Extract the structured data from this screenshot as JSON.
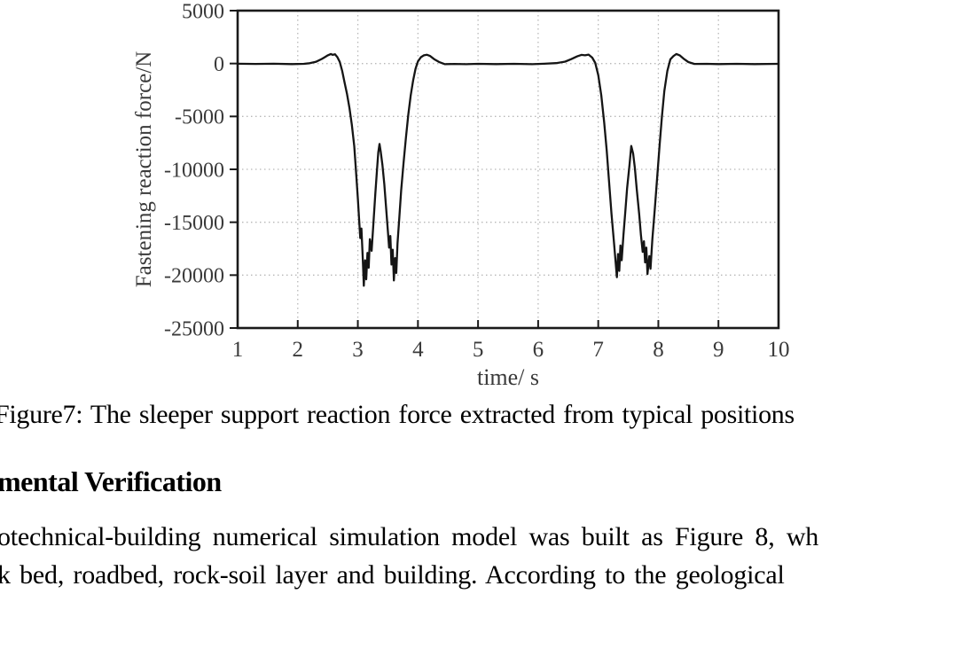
{
  "document": {
    "caption": "Figure7: The sleeper support reaction force extracted from typical positions",
    "heading": "mental Verification",
    "body_lines": [
      "otechnical-building numerical simulation model was built as Figure 8, wh",
      "k bed, roadbed, rock-soil layer and building. According to the geological"
    ]
  },
  "chart_data": {
    "type": "line",
    "title": "",
    "xlabel": "time/ s",
    "ylabel": "Fastening reaction force/N",
    "xlim": [
      1,
      10
    ],
    "ylim": [
      -25000,
      5000
    ],
    "xticks": [
      1,
      2,
      3,
      4,
      5,
      6,
      7,
      8,
      9,
      10
    ],
    "yticks": [
      5000,
      0,
      -5000,
      -10000,
      -15000,
      -20000,
      -25000
    ],
    "grid": "dotted",
    "legend": "none",
    "line_color": "#151515",
    "grid_color": "#b8b8b8",
    "frame_color": "#1a1a1a",
    "label_color": "#3a3a3a",
    "series": [
      {
        "name": "Fastening reaction force",
        "points": [
          [
            1.0,
            -20
          ],
          [
            1.3,
            -40
          ],
          [
            1.6,
            -20
          ],
          [
            1.9,
            -50
          ],
          [
            2.1,
            -30
          ],
          [
            2.2,
            30
          ],
          [
            2.3,
            160
          ],
          [
            2.4,
            430
          ],
          [
            2.45,
            600
          ],
          [
            2.5,
            780
          ],
          [
            2.55,
            900
          ],
          [
            2.58,
            820
          ],
          [
            2.62,
            880
          ],
          [
            2.66,
            600
          ],
          [
            2.7,
            150
          ],
          [
            2.74,
            -700
          ],
          [
            2.78,
            -1800
          ],
          [
            2.82,
            -2900
          ],
          [
            2.86,
            -4200
          ],
          [
            2.9,
            -5800
          ],
          [
            2.94,
            -7800
          ],
          [
            2.97,
            -10200
          ],
          [
            3.0,
            -12800
          ],
          [
            3.02,
            -14600
          ],
          [
            3.04,
            -16500
          ],
          [
            3.06,
            -15600
          ],
          [
            3.08,
            -18200
          ],
          [
            3.1,
            -21000
          ],
          [
            3.12,
            -18600
          ],
          [
            3.14,
            -20400
          ],
          [
            3.16,
            -17900
          ],
          [
            3.18,
            -19300
          ],
          [
            3.2,
            -16600
          ],
          [
            3.23,
            -17700
          ],
          [
            3.26,
            -15000
          ],
          [
            3.29,
            -12400
          ],
          [
            3.32,
            -10000
          ],
          [
            3.34,
            -8400
          ],
          [
            3.36,
            -7600
          ],
          [
            3.38,
            -8300
          ],
          [
            3.41,
            -9600
          ],
          [
            3.44,
            -11400
          ],
          [
            3.47,
            -13600
          ],
          [
            3.5,
            -15800
          ],
          [
            3.52,
            -17400
          ],
          [
            3.54,
            -16300
          ],
          [
            3.56,
            -19000
          ],
          [
            3.58,
            -17600
          ],
          [
            3.6,
            -20500
          ],
          [
            3.62,
            -18400
          ],
          [
            3.64,
            -19800
          ],
          [
            3.66,
            -17000
          ],
          [
            3.69,
            -14600
          ],
          [
            3.72,
            -12000
          ],
          [
            3.76,
            -9400
          ],
          [
            3.8,
            -7000
          ],
          [
            3.84,
            -4800
          ],
          [
            3.88,
            -3000
          ],
          [
            3.92,
            -1600
          ],
          [
            3.96,
            -500
          ],
          [
            4.0,
            200
          ],
          [
            4.05,
            600
          ],
          [
            4.1,
            780
          ],
          [
            4.15,
            830
          ],
          [
            4.2,
            720
          ],
          [
            4.27,
            420
          ],
          [
            4.35,
            150
          ],
          [
            4.45,
            -60
          ],
          [
            4.6,
            -40
          ],
          [
            4.8,
            -60
          ],
          [
            5.0,
            -30
          ],
          [
            5.3,
            -50
          ],
          [
            5.6,
            -30
          ],
          [
            5.9,
            -60
          ],
          [
            6.1,
            -20
          ],
          [
            6.3,
            40
          ],
          [
            6.45,
            180
          ],
          [
            6.55,
            420
          ],
          [
            6.65,
            680
          ],
          [
            6.72,
            820
          ],
          [
            6.78,
            780
          ],
          [
            6.84,
            840
          ],
          [
            6.9,
            560
          ],
          [
            6.95,
            60
          ],
          [
            7.0,
            -1100
          ],
          [
            7.05,
            -3000
          ],
          [
            7.1,
            -5600
          ],
          [
            7.14,
            -8200
          ],
          [
            7.18,
            -11200
          ],
          [
            7.22,
            -14200
          ],
          [
            7.26,
            -16800
          ],
          [
            7.29,
            -18800
          ],
          [
            7.31,
            -20200
          ],
          [
            7.33,
            -18000
          ],
          [
            7.35,
            -19600
          ],
          [
            7.37,
            -17200
          ],
          [
            7.39,
            -18600
          ],
          [
            7.42,
            -16200
          ],
          [
            7.45,
            -14000
          ],
          [
            7.48,
            -11800
          ],
          [
            7.52,
            -9600
          ],
          [
            7.55,
            -7800
          ],
          [
            7.58,
            -8500
          ],
          [
            7.61,
            -9900
          ],
          [
            7.64,
            -11800
          ],
          [
            7.68,
            -14200
          ],
          [
            7.71,
            -16200
          ],
          [
            7.74,
            -17800
          ],
          [
            7.76,
            -16800
          ],
          [
            7.78,
            -18800
          ],
          [
            7.8,
            -17400
          ],
          [
            7.82,
            -19900
          ],
          [
            7.85,
            -18200
          ],
          [
            7.87,
            -19400
          ],
          [
            7.9,
            -16600
          ],
          [
            7.94,
            -13800
          ],
          [
            7.98,
            -10800
          ],
          [
            8.02,
            -7800
          ],
          [
            8.06,
            -5000
          ],
          [
            8.1,
            -2600
          ],
          [
            8.15,
            -700
          ],
          [
            8.2,
            400
          ],
          [
            8.25,
            700
          ],
          [
            8.3,
            900
          ],
          [
            8.36,
            760
          ],
          [
            8.43,
            420
          ],
          [
            8.5,
            140
          ],
          [
            8.6,
            -40
          ],
          [
            8.8,
            -30
          ],
          [
            9.0,
            -50
          ],
          [
            9.3,
            -30
          ],
          [
            9.6,
            -50
          ],
          [
            10.0,
            -30
          ]
        ]
      }
    ]
  }
}
